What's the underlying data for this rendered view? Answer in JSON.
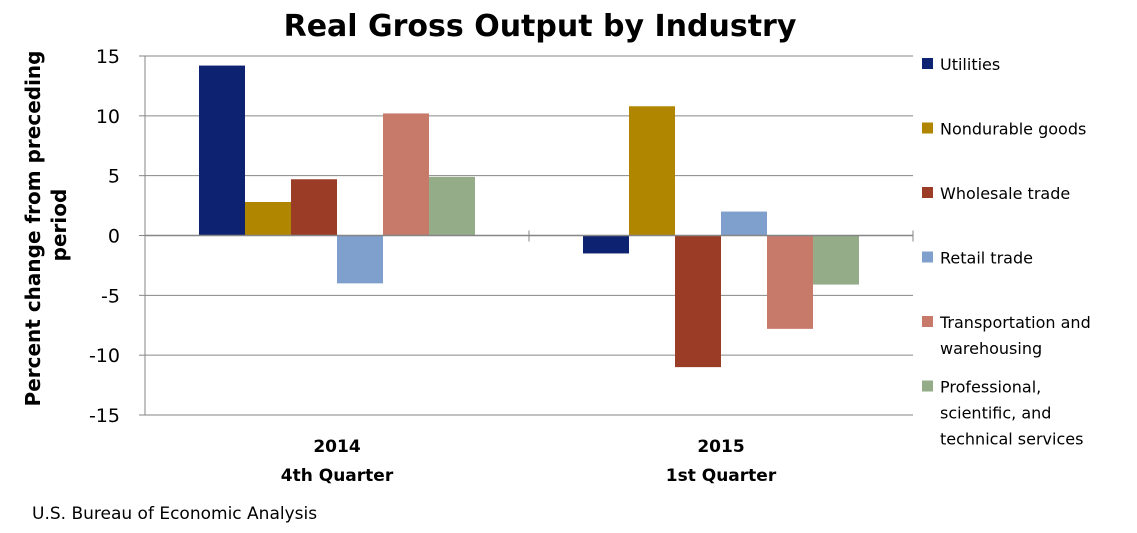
{
  "chart_data": {
    "type": "bar",
    "title": "Real Gross Output by Industry",
    "ylabel": "Percent change from preceding period",
    "xlabel": "",
    "ylim": [
      -15,
      15
    ],
    "yticks": [
      15,
      10,
      5,
      0,
      -5,
      -10,
      -15
    ],
    "grid": true,
    "legend_position": "right",
    "categories": [
      {
        "year": "2014",
        "quarter": "4th Quarter"
      },
      {
        "year": "2015",
        "quarter": "1st Quarter"
      }
    ],
    "series": [
      {
        "name": "Utilities",
        "color": "#0d2271",
        "values": [
          14.2,
          -1.5
        ]
      },
      {
        "name": "Nondurable goods",
        "color": "#b08600",
        "values": [
          2.8,
          10.8
        ]
      },
      {
        "name": "Wholesale trade",
        "color": "#9a3c26",
        "values": [
          4.7,
          -11.0
        ]
      },
      {
        "name": "Retail trade",
        "color": "#7f9fcc",
        "values": [
          -4.0,
          2.0
        ]
      },
      {
        "name": "Transportation and warehousing",
        "color": "#c7796a",
        "values": [
          10.2,
          -7.8
        ]
      },
      {
        "name": "Professional, scientific, and technical services",
        "color": "#94ac88",
        "values": [
          4.9,
          -4.1
        ]
      }
    ],
    "source": "U.S. Bureau of Economic Analysis"
  }
}
